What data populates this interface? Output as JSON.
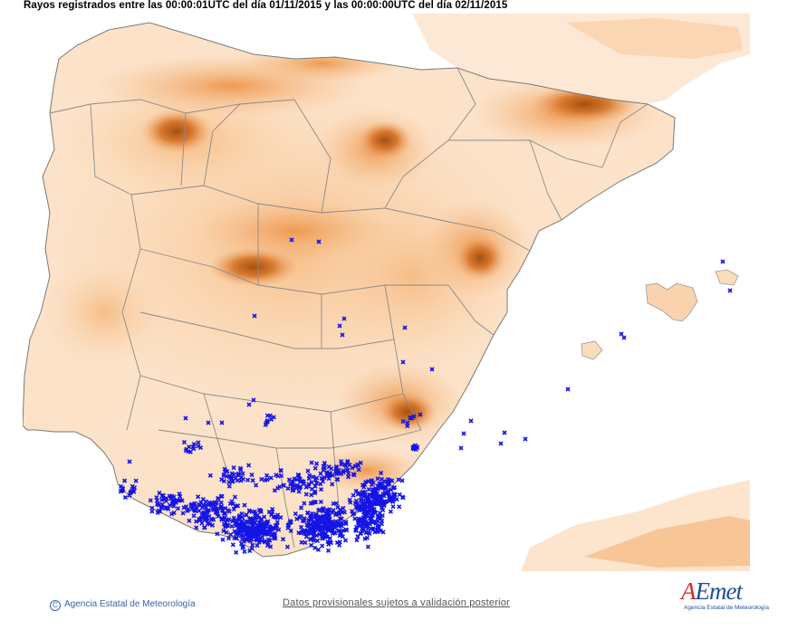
{
  "title": "Rayos registrados entre las 00:00:01UTC del día 01/11/2015 y las 00:00:00UTC del día 02/11/2015",
  "copyright": "Agencia Estatal de Meteorología",
  "disclaimer": "Datos provisionales sujetos a validación posterior",
  "logo": {
    "wordmark_a": "A",
    "wordmark_rest": "Emet",
    "agency": "Agencia Estatal de Meteorología"
  },
  "colors": {
    "background": "#ffffff",
    "land_light": "#fde7d3",
    "land_mid": "#f8c79a",
    "land_high": "#ef9b4f",
    "land_peak": "#b85c1a",
    "borders": "#8a8a8a",
    "lightning": "#1414e6"
  },
  "icons": [
    "copyright-icon",
    "lightning-marker-icon"
  ],
  "legend": {
    "marker": "x",
    "meaning_shown": false
  }
}
